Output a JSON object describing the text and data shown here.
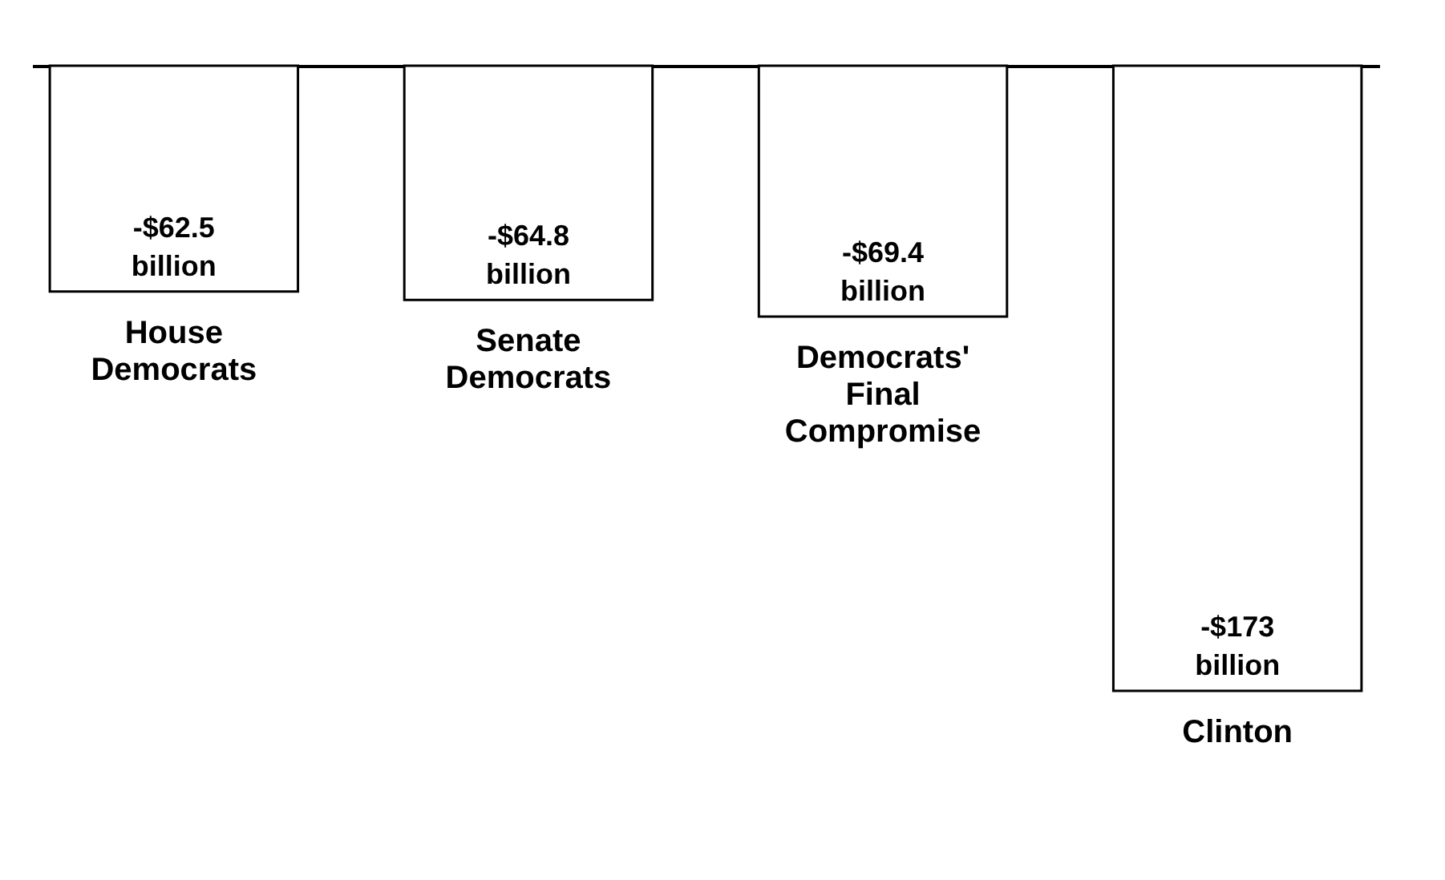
{
  "chart_data": {
    "type": "bar",
    "categories": [
      "House Democrats",
      "Senate Democrats",
      "Democrats' Final Compromise",
      "Clinton"
    ],
    "values": [
      -62.5,
      -64.8,
      -69.4,
      -173
    ],
    "value_labels": [
      "-$62.5 billion",
      "-$64.8 billion",
      "-$69.4 billion",
      "-$173 billion"
    ],
    "color": "#ffffff"
  }
}
